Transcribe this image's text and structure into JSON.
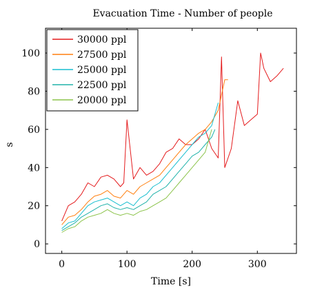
{
  "chart_data": {
    "type": "line",
    "title": "Evacuation Time - Number of people",
    "xlabel": "Time [s]",
    "ylabel": "s",
    "xlim": [
      -25,
      360
    ],
    "ylim": [
      -5,
      113
    ],
    "xticks": [
      0,
      100,
      200,
      300
    ],
    "yticks": [
      0,
      20,
      40,
      60,
      80,
      100
    ],
    "grid": false,
    "legend_position": "top-left",
    "series": [
      {
        "name": "30000 ppl",
        "color": "#e41a1c",
        "x": [
          0,
          10,
          20,
          30,
          40,
          50,
          60,
          70,
          80,
          90,
          95,
          100,
          110,
          120,
          130,
          140,
          150,
          160,
          170,
          180,
          190,
          200,
          210,
          220,
          230,
          240,
          245,
          250,
          260,
          270,
          280,
          290,
          300,
          305,
          310,
          320,
          330,
          340
        ],
        "y": [
          12,
          20,
          22,
          26,
          32,
          30,
          35,
          36,
          34,
          30,
          32,
          65,
          34,
          40,
          36,
          38,
          42,
          48,
          50,
          55,
          52,
          52,
          55,
          60,
          50,
          45,
          98,
          40,
          50,
          75,
          62,
          65,
          68,
          100,
          92,
          85,
          88,
          92
        ]
      },
      {
        "name": "27500 ppl",
        "color": "#ff7f0e",
        "x": [
          0,
          10,
          20,
          30,
          40,
          50,
          60,
          70,
          80,
          90,
          100,
          110,
          120,
          130,
          140,
          150,
          160,
          170,
          180,
          190,
          200,
          210,
          220,
          230,
          240,
          250,
          255
        ],
        "y": [
          10,
          14,
          15,
          18,
          22,
          25,
          26,
          28,
          25,
          24,
          28,
          26,
          30,
          32,
          34,
          36,
          40,
          44,
          48,
          52,
          55,
          58,
          60,
          64,
          70,
          86,
          86
        ]
      },
      {
        "name": "25000 ppl",
        "color": "#17becf",
        "x": [
          0,
          10,
          20,
          30,
          40,
          50,
          60,
          70,
          80,
          90,
          100,
          110,
          120,
          130,
          140,
          150,
          160,
          170,
          180,
          190,
          200,
          210,
          220,
          230,
          240
        ],
        "y": [
          8,
          11,
          12,
          16,
          20,
          22,
          23,
          24,
          22,
          20,
          22,
          20,
          24,
          26,
          30,
          32,
          36,
          40,
          44,
          48,
          52,
          56,
          58,
          62,
          74
        ]
      },
      {
        "name": "22500 ppl",
        "color": "#20b2aa",
        "x": [
          0,
          10,
          20,
          30,
          40,
          50,
          60,
          70,
          80,
          90,
          100,
          110,
          120,
          130,
          140,
          150,
          160,
          170,
          180,
          190,
          200,
          210,
          220,
          230,
          235
        ],
        "y": [
          7,
          9,
          11,
          14,
          16,
          18,
          20,
          21,
          19,
          18,
          19,
          18,
          20,
          22,
          26,
          28,
          30,
          34,
          38,
          42,
          46,
          48,
          52,
          56,
          60
        ]
      },
      {
        "name": "20000 ppl",
        "color": "#8bc34a",
        "x": [
          0,
          10,
          20,
          30,
          40,
          50,
          60,
          70,
          80,
          90,
          100,
          110,
          120,
          130,
          140,
          150,
          160,
          170,
          180,
          190,
          200,
          210,
          220,
          230
        ],
        "y": [
          6,
          8,
          9,
          12,
          14,
          15,
          16,
          18,
          16,
          15,
          16,
          15,
          17,
          18,
          20,
          22,
          24,
          28,
          32,
          36,
          40,
          44,
          48,
          60
        ]
      }
    ]
  }
}
